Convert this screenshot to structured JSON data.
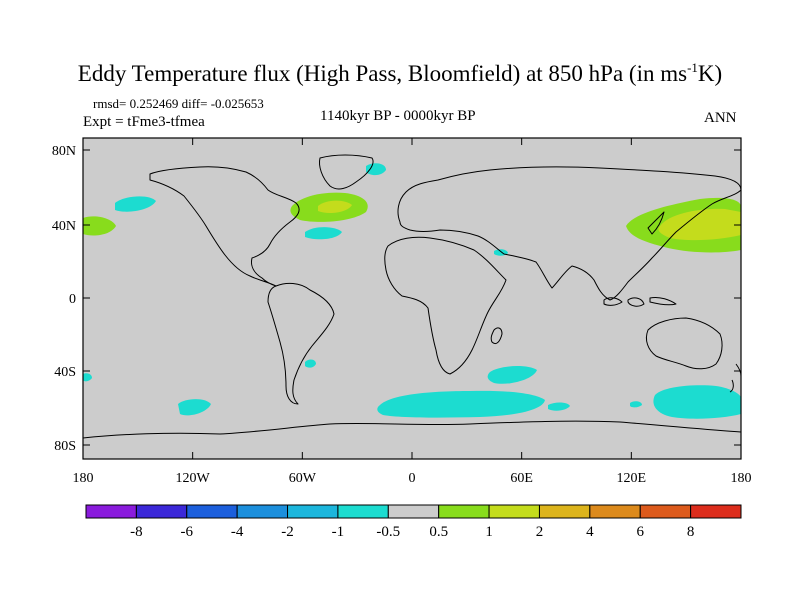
{
  "title": {
    "main": "Eddy Temperature flux (High Pass, Bloomfield) at 850 hPa (in ms",
    "sup": "-1",
    "tail": "K)"
  },
  "stats": "rmsd= 0.252469  diff= -0.025653",
  "experiment": "Expt = tFme3-tfmea",
  "period": "1140kyr BP - 0000kyr BP",
  "season": "ANN",
  "lat_ticks": [
    "80N",
    "40N",
    "0",
    "40S",
    "80S"
  ],
  "lon_ticks": [
    "180",
    "120W",
    "60W",
    "0",
    "60E",
    "120E",
    "180"
  ],
  "colorbar": {
    "colors": [
      "#8a1bdc",
      "#3b28d8",
      "#1c5fdc",
      "#1c8fdc",
      "#1cb6dc",
      "#1cdcd0",
      "#cccccc",
      "#88dc1c",
      "#c4dc1c",
      "#dcb41c",
      "#dc8a1c",
      "#dc5a1c",
      "#dc2d1c"
    ],
    "labels": [
      "-8",
      "-6",
      "-4",
      "-2",
      "-1",
      "-0.5",
      "0.5",
      "1",
      "2",
      "4",
      "6",
      "8"
    ]
  },
  "colors": {
    "ocean_land_bg": "#cccccc",
    "cyan": "#1cdcd0",
    "green": "#88dc1c",
    "yellow_green": "#c4dc1c"
  }
}
